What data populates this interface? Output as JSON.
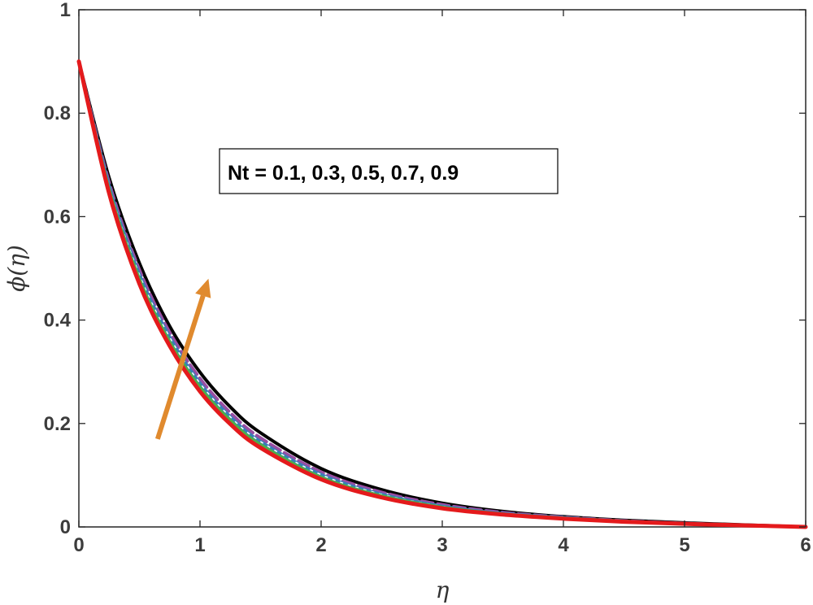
{
  "chart_data": {
    "type": "line",
    "xlabel": "η",
    "ylabel": "ϕ(η)",
    "xlim": [
      0,
      6
    ],
    "ylim": [
      0,
      1
    ],
    "xticks": [
      "0",
      "1",
      "2",
      "3",
      "4",
      "5",
      "6"
    ],
    "yticks": [
      "0",
      "0.2",
      "0.4",
      "0.6",
      "0.8",
      "1"
    ],
    "grid": false,
    "annotation": "Nt = 0.1, 0.3, 0.5, 0.7, 0.9",
    "arrow": {
      "from": [
        0.65,
        0.17
      ],
      "to": [
        1.07,
        0.48
      ],
      "color": "#e08a2e",
      "meaning": "increasing"
    },
    "x": [
      0,
      0.25,
      0.5,
      0.75,
      1.0,
      1.25,
      1.5,
      2.0,
      2.5,
      3.0,
      3.5,
      4.0,
      4.5,
      5.0,
      5.5,
      6.0
    ],
    "series": [
      {
        "color": "#e41a1c",
        "style": "solid",
        "values": [
          0.9,
          0.645,
          0.47,
          0.35,
          0.262,
          0.199,
          0.153,
          0.092,
          0.057,
          0.036,
          0.024,
          0.016,
          0.01,
          0.006,
          0.003,
          0.0
        ]
      },
      {
        "color": "#4daf4a",
        "style": "solid",
        "values": [
          0.9,
          0.652,
          0.479,
          0.358,
          0.27,
          0.206,
          0.159,
          0.096,
          0.06,
          0.038,
          0.025,
          0.017,
          0.011,
          0.006,
          0.003,
          0.0
        ]
      },
      {
        "color": "#377eb8",
        "style": "solid",
        "values": [
          0.9,
          0.659,
          0.488,
          0.367,
          0.278,
          0.213,
          0.165,
          0.101,
          0.063,
          0.04,
          0.026,
          0.018,
          0.011,
          0.007,
          0.003,
          0.0
        ]
      },
      {
        "color": "#984ea3",
        "style": "dashed",
        "values": [
          0.9,
          0.666,
          0.497,
          0.376,
          0.287,
          0.221,
          0.172,
          0.106,
          0.067,
          0.043,
          0.028,
          0.019,
          0.012,
          0.007,
          0.003,
          0.0
        ]
      },
      {
        "color": "#000000",
        "style": "solid",
        "values": [
          0.9,
          0.675,
          0.51,
          0.388,
          0.299,
          0.232,
          0.182,
          0.113,
          0.072,
          0.046,
          0.03,
          0.02,
          0.013,
          0.008,
          0.004,
          0.0
        ]
      }
    ]
  }
}
